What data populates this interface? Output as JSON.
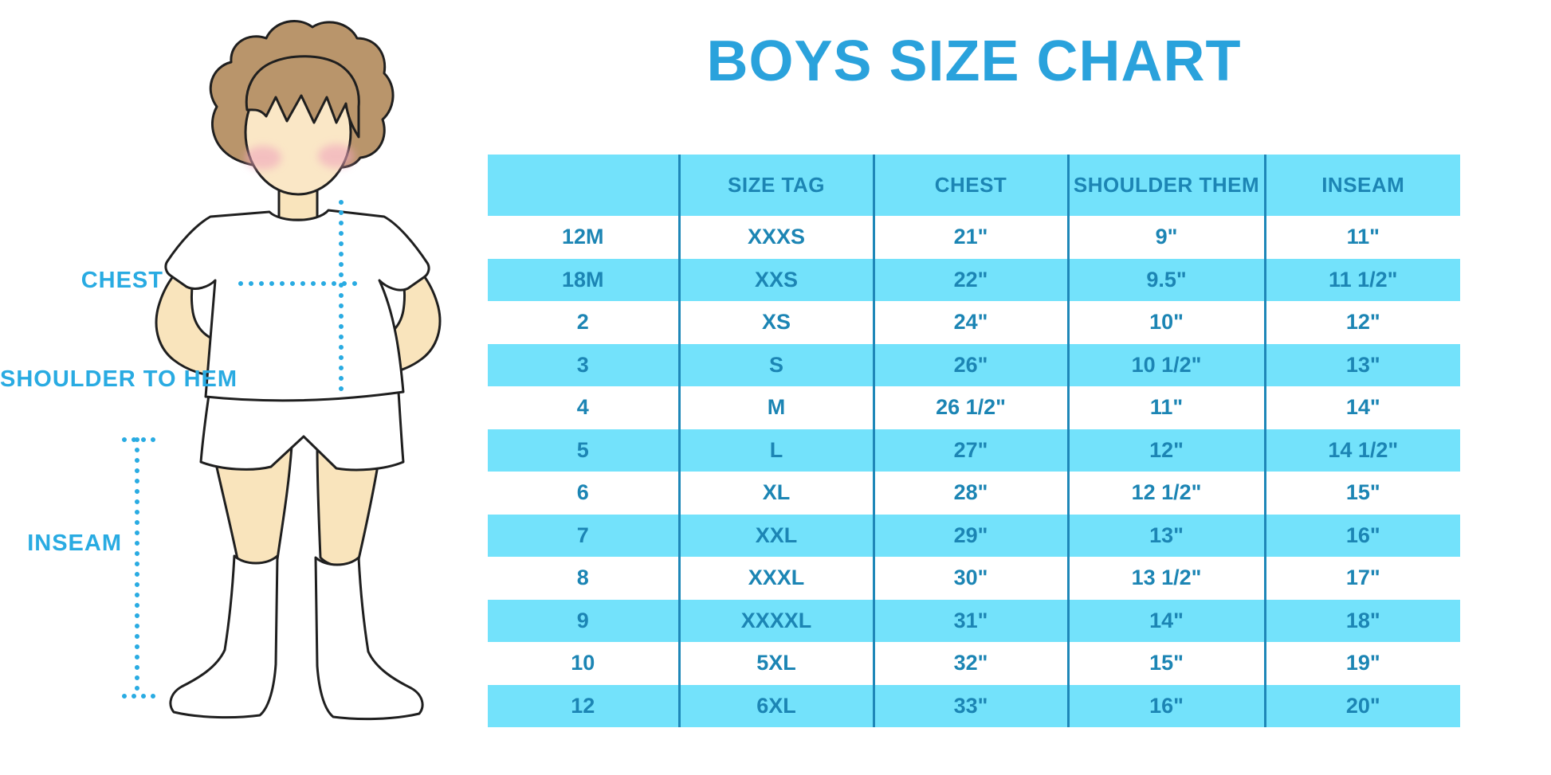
{
  "title": "BOYS SIZE CHART",
  "figure_labels": {
    "chest": "CHEST",
    "shoulder_to_hem": "SHOULDER TO HEM",
    "inseam": "INSEAM"
  },
  "chart_data": {
    "type": "table",
    "title": "BOYS SIZE CHART",
    "columns": [
      "",
      "SIZE TAG",
      "CHEST",
      "SHOULDER THEM",
      "INSEAM"
    ],
    "rows": [
      [
        "12M",
        "XXXS",
        "21\"",
        "9\"",
        "11\""
      ],
      [
        "18M",
        "XXS",
        "22\"",
        "9.5\"",
        "11 1/2\""
      ],
      [
        "2",
        "XS",
        "24\"",
        "10\"",
        "12\""
      ],
      [
        "3",
        "S",
        "26\"",
        "10 1/2\"",
        "13\""
      ],
      [
        "4",
        "M",
        "26 1/2\"",
        "11\"",
        "14\""
      ],
      [
        "5",
        "L",
        "27\"",
        "12\"",
        "14 1/2\""
      ],
      [
        "6",
        "XL",
        "28\"",
        "12 1/2\"",
        "15\""
      ],
      [
        "7",
        "XXL",
        "29\"",
        "13\"",
        "16\""
      ],
      [
        "8",
        "XXXL",
        "30\"",
        "13 1/2\"",
        "17\""
      ],
      [
        "9",
        "XXXXL",
        "31\"",
        "14\"",
        "18\""
      ],
      [
        "10",
        "5XL",
        "32\"",
        "15\"",
        "19\""
      ],
      [
        "12",
        "6XL",
        "33\"",
        "16\"",
        "20\""
      ]
    ],
    "layout": {
      "row_striping": "white / light-blue alternating, header and last row light blue",
      "column_dividers": "vertical dark-blue lines between all 5 columns"
    }
  },
  "colors": {
    "accent_blue": "#29ABE2",
    "title_blue": "#2AA2DC",
    "row_light_blue": "#73E2FB",
    "table_text_blue": "#1C85B4",
    "divider_blue": "#1E87B8",
    "skin": "#F9E4BC",
    "hair_brown": "#B9956B",
    "cheek_pink": "#F0A6BC",
    "outline": "#1F1F1F"
  }
}
